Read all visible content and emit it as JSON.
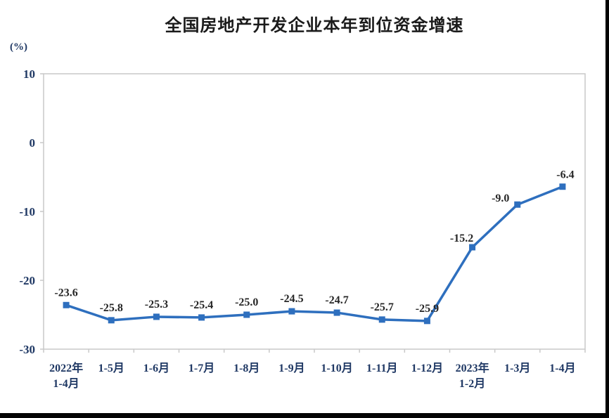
{
  "page": {
    "background": "#ffffff"
  },
  "chart_data": {
    "type": "line",
    "title": "全国房地产开发企业本年到位资金增速",
    "ylabel": "(%)",
    "xlabel": "",
    "categories": [
      "2022年\n1-4月",
      "1-5月",
      "1-6月",
      "1-7月",
      "1-8月",
      "1-9月",
      "1-10月",
      "1-11月",
      "1-12月",
      "2023年\n1-2月",
      "1-3月",
      "1-4月"
    ],
    "values": [
      -23.6,
      -25.8,
      -25.3,
      -25.4,
      -25.0,
      -24.5,
      -24.7,
      -25.7,
      -25.9,
      -15.2,
      -9.0,
      -6.4
    ],
    "data_labels": [
      "-23.6",
      "-25.8",
      "-25.3",
      "-25.4",
      "-25.0",
      "-24.5",
      "-24.7",
      "-25.7",
      "-25.9",
      "-15.2",
      "-9.0",
      "-6.4"
    ],
    "ylim": [
      -30,
      10
    ],
    "yticks": [
      10,
      0,
      -10,
      -20,
      -30
    ],
    "grid": false,
    "legend_position": "none",
    "marker": "square",
    "line_color": "#2e6fbe"
  },
  "colors": {
    "line": "#2e6fbe",
    "axis_text": "#1f3864",
    "data_label_text": "#262626",
    "plot_border": "#c9c9c9",
    "screenshot_edge": "#030303"
  }
}
